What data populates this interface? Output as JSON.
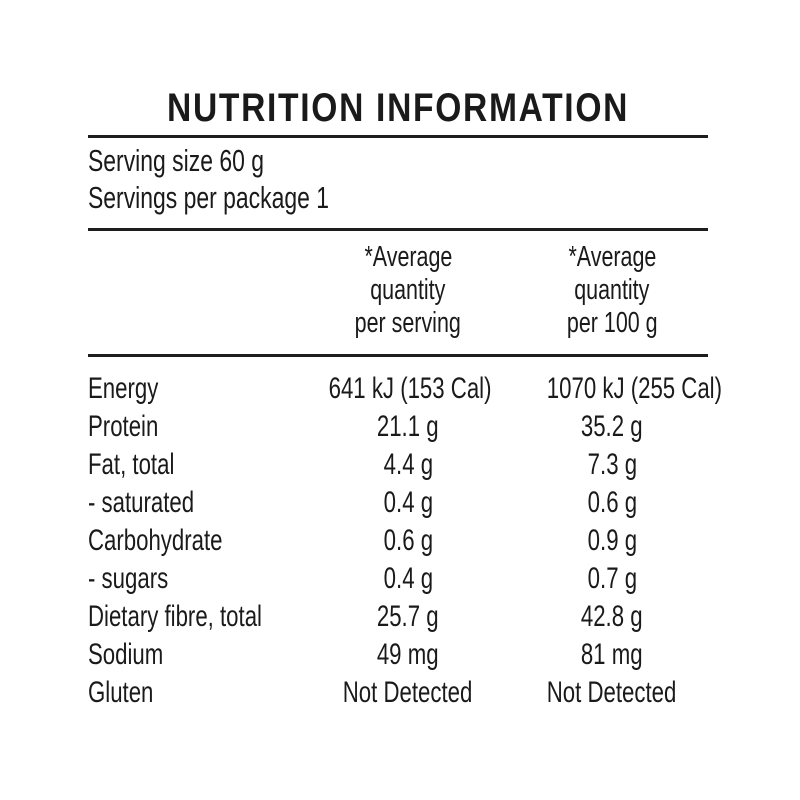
{
  "panel": {
    "title": "NUTRITION INFORMATION"
  },
  "serving_info": {
    "serving_size": "Serving size 60 g",
    "servings_per_package": "Servings per package 1"
  },
  "table": {
    "columns": [
      {
        "lines": [
          "*Average",
          "quantity",
          "per serving"
        ]
      },
      {
        "lines": [
          "*Average",
          "quantity",
          "per 100 g"
        ]
      }
    ],
    "rows": [
      {
        "label": "Energy",
        "per_serving": "641 kJ (153 Cal)",
        "per_100g": "1070 kJ (255 Cal)"
      },
      {
        "label": "Protein",
        "per_serving": "21.1 g",
        "per_100g": "35.2 g"
      },
      {
        "label": "Fat, total",
        "per_serving": "4.4 g",
        "per_100g": "7.3 g"
      },
      {
        "label": "- saturated",
        "per_serving": "0.4 g",
        "per_100g": "0.6 g"
      },
      {
        "label": "Carbohydrate",
        "per_serving": "0.6 g",
        "per_100g": "0.9 g"
      },
      {
        "label": "- sugars",
        "per_serving": "0.4 g",
        "per_100g": "0.7 g"
      },
      {
        "label": "Dietary fibre, total",
        "per_serving": "25.7 g",
        "per_100g": "42.8 g"
      },
      {
        "label": "Sodium",
        "per_serving": "49 mg",
        "per_100g": "81 mg"
      },
      {
        "label": "Gluten",
        "per_serving": "Not Detected",
        "per_100g": "Not Detected"
      }
    ]
  },
  "colors": {
    "text": "#1a1a1a",
    "rule": "#1d1d1d",
    "background": "#ffffff"
  }
}
